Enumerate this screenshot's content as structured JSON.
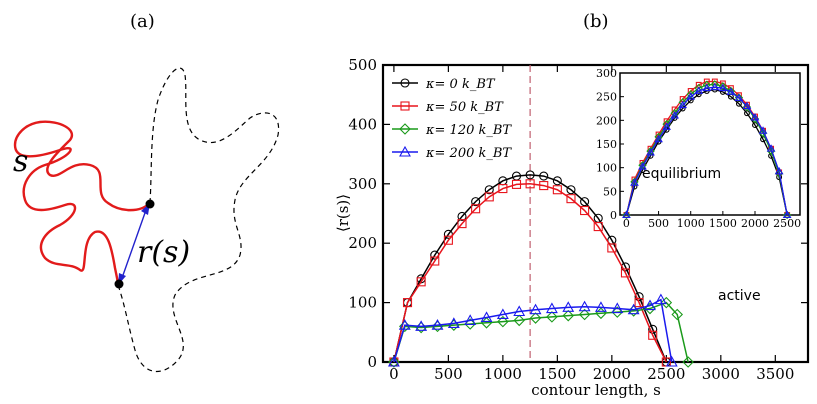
{
  "panel_a": {
    "label": "(a)",
    "s_label": "s",
    "r_label": "r(s)",
    "colors": {
      "chain": "#e21b1b",
      "dashed": "#000000",
      "arrow": "#2222cc"
    }
  },
  "panel_b": {
    "label": "(b)",
    "annotation_active": "active",
    "annotation_equilibrium": "equilibrium"
  },
  "chart_data": [
    {
      "type": "line",
      "id": "main",
      "xlabel": "contour length, s",
      "ylabel": "⟨r(s)⟩",
      "xlim": [
        -100,
        3800
      ],
      "ylim": [
        0,
        500
      ],
      "xticks": [
        0,
        500,
        1000,
        1500,
        2000,
        2500,
        3000,
        3500
      ],
      "yticks": [
        0,
        100,
        200,
        300,
        400,
        500
      ],
      "vline_x": 1250,
      "vline_color": "#c06070",
      "legend_position": "top-left",
      "series": [
        {
          "name": "κ= 0 kBT",
          "legend_text": "κ= 0 k_BT",
          "color": "#000000",
          "marker": "circle",
          "x": [
            0,
            125,
            250,
            375,
            500,
            625,
            750,
            875,
            1000,
            1125,
            1250,
            1375,
            1500,
            1625,
            1750,
            1875,
            2000,
            2125,
            2250,
            2375,
            2500
          ],
          "y": [
            0,
            100,
            140,
            180,
            215,
            245,
            270,
            290,
            305,
            313,
            315,
            313,
            305,
            290,
            270,
            242,
            205,
            160,
            110,
            55,
            0
          ]
        },
        {
          "name": "κ= 50 kBT",
          "legend_text": "κ= 50 k_BT",
          "color": "#e8141c",
          "marker": "square",
          "x": [
            0,
            125,
            250,
            375,
            500,
            625,
            750,
            875,
            1000,
            1125,
            1250,
            1375,
            1500,
            1625,
            1750,
            1875,
            2000,
            2125,
            2250,
            2375,
            2500
          ],
          "y": [
            0,
            100,
            135,
            170,
            205,
            233,
            258,
            278,
            292,
            299,
            300,
            297,
            290,
            275,
            255,
            228,
            192,
            150,
            100,
            45,
            0
          ]
        },
        {
          "name": "κ= 120 kBT",
          "legend_text": "κ= 120 k_BT",
          "color": "#1a9a1a",
          "marker": "diamond",
          "x": [
            0,
            100,
            250,
            400,
            550,
            700,
            850,
            1000,
            1150,
            1300,
            1450,
            1600,
            1750,
            1900,
            2050,
            2200,
            2350,
            2500,
            2600,
            2700
          ],
          "y": [
            0,
            60,
            58,
            60,
            62,
            64,
            66,
            68,
            70,
            74,
            76,
            78,
            80,
            82,
            84,
            86,
            90,
            100,
            80,
            0
          ]
        },
        {
          "name": "κ= 200 kBT",
          "legend_text": "κ= 200 k_BT",
          "color": "#1a1aee",
          "marker": "triangle",
          "x": [
            0,
            100,
            250,
            400,
            550,
            700,
            850,
            1000,
            1150,
            1300,
            1450,
            1600,
            1750,
            1900,
            2050,
            2200,
            2350,
            2450,
            2550
          ],
          "y": [
            0,
            62,
            60,
            62,
            65,
            70,
            75,
            80,
            85,
            88,
            90,
            92,
            93,
            92,
            90,
            88,
            95,
            105,
            0
          ]
        }
      ]
    },
    {
      "type": "line",
      "id": "inset",
      "xlim": [
        -100,
        2700
      ],
      "ylim": [
        0,
        300
      ],
      "xticks": [
        0,
        500,
        1000,
        1500,
        2000,
        2500
      ],
      "yticks": [
        0,
        50,
        100,
        150,
        200,
        250,
        300
      ],
      "series": [
        {
          "name": "κ= 0 kBT",
          "color": "#000000",
          "marker": "circle",
          "x": [
            0,
            125,
            250,
            375,
            500,
            625,
            750,
            875,
            1000,
            1125,
            1250,
            1375,
            1500,
            1625,
            1750,
            1875,
            2000,
            2125,
            2250,
            2375,
            2500
          ],
          "y": [
            0,
            60,
            95,
            125,
            155,
            180,
            205,
            225,
            242,
            255,
            262,
            265,
            260,
            250,
            235,
            215,
            190,
            160,
            125,
            80,
            0
          ]
        },
        {
          "name": "κ= 50 kBT",
          "color": "#e8141c",
          "marker": "square",
          "x": [
            0,
            125,
            250,
            375,
            500,
            625,
            750,
            875,
            1000,
            1125,
            1250,
            1375,
            1500,
            1625,
            1750,
            1875,
            2000,
            2125,
            2250,
            2375,
            2500
          ],
          "y": [
            0,
            75,
            110,
            140,
            170,
            198,
            223,
            245,
            262,
            275,
            282,
            282,
            278,
            268,
            253,
            233,
            208,
            178,
            140,
            90,
            0
          ]
        },
        {
          "name": "κ= 120 kBT",
          "color": "#1a9a1a",
          "marker": "diamond",
          "x": [
            0,
            125,
            250,
            375,
            500,
            625,
            750,
            875,
            1000,
            1125,
            1250,
            1375,
            1500,
            1625,
            1750,
            1875,
            2000,
            2125,
            2250,
            2375,
            2500
          ],
          "y": [
            0,
            70,
            105,
            135,
            165,
            192,
            215,
            238,
            255,
            268,
            275,
            276,
            272,
            262,
            248,
            228,
            203,
            173,
            135,
            88,
            0
          ]
        },
        {
          "name": "κ= 200 kBT",
          "color": "#1a1aee",
          "marker": "triangle",
          "x": [
            0,
            125,
            250,
            375,
            500,
            625,
            750,
            875,
            1000,
            1125,
            1250,
            1375,
            1500,
            1625,
            1750,
            1875,
            2000,
            2125,
            2250,
            2375,
            2500
          ],
          "y": [
            0,
            68,
            102,
            132,
            160,
            186,
            210,
            232,
            250,
            262,
            268,
            270,
            268,
            260,
            247,
            230,
            206,
            178,
            140,
            92,
            0
          ]
        }
      ]
    }
  ]
}
